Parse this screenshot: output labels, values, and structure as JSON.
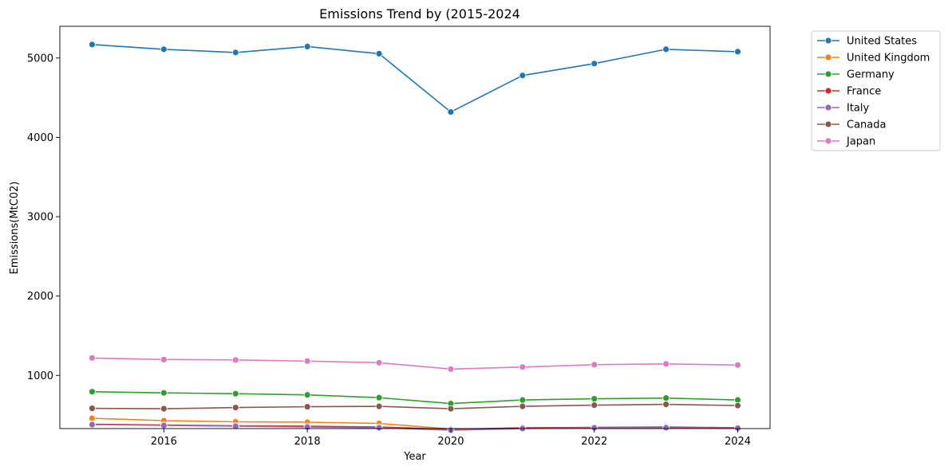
{
  "chart_data": {
    "type": "line",
    "title": "Emissions Trend by (2015-2024",
    "xlabel": "Year",
    "ylabel": "Emissions(MtC02)",
    "x": [
      2015,
      2016,
      2017,
      2018,
      2019,
      2020,
      2021,
      2022,
      2023,
      2024
    ],
    "xlim": [
      2014.55,
      2024.45
    ],
    "ylim": [
      330,
      5400
    ],
    "xticks": [
      2016,
      2018,
      2020,
      2022,
      2024
    ],
    "yticks": [
      1000,
      2000,
      3000,
      4000,
      5000
    ],
    "grid": false,
    "legend_placement": "outside top-right",
    "marker": "circle",
    "series": [
      {
        "name": "United States",
        "color": "#1f77b4",
        "values": [
          5170,
          5110,
          5070,
          5145,
          5055,
          4320,
          4780,
          4930,
          5110,
          5080
        ]
      },
      {
        "name": "United Kingdom",
        "color": "#ff7f0e",
        "values": [
          460,
          430,
          415,
          410,
          395,
          325,
          335,
          345,
          345,
          340
        ]
      },
      {
        "name": "Germany",
        "color": "#2ca02c",
        "values": [
          795,
          780,
          770,
          755,
          720,
          645,
          690,
          705,
          715,
          690
        ]
      },
      {
        "name": "France",
        "color": "#d62728",
        "values": [
          385,
          375,
          365,
          360,
          350,
          320,
          340,
          345,
          350,
          340
        ]
      },
      {
        "name": "Italy",
        "color": "#9467bd",
        "values": [
          380,
          370,
          360,
          350,
          340,
          310,
          330,
          340,
          340,
          335
        ]
      },
      {
        "name": "Canada",
        "color": "#8c564b",
        "values": [
          585,
          580,
          595,
          605,
          610,
          580,
          610,
          625,
          635,
          620
        ]
      },
      {
        "name": "Japan",
        "color": "#e377c2",
        "values": [
          1220,
          1200,
          1195,
          1180,
          1160,
          1080,
          1105,
          1135,
          1145,
          1130
        ]
      }
    ]
  }
}
